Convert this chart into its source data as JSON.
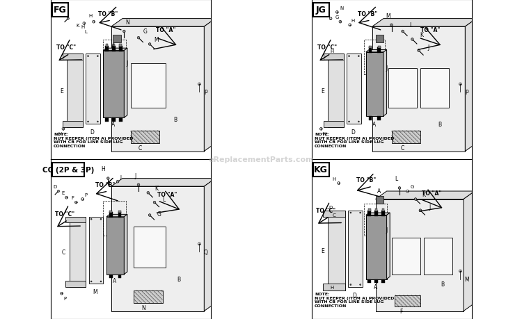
{
  "bg_color": "#ffffff",
  "watermark": "eReplacementParts.com",
  "watermark_color": "#aaaaaa",
  "border_color": "#000000",
  "line_color": "#000000",
  "panel_fill": "#f0f0f0",
  "panel_edge": "#222222",
  "component_fill": "#d8d8d8",
  "dark_fill": "#444444",
  "note_text": "NOTE:\nNUT KEEPER (ITEM A) PROVIDED\nWITH CB FOR LINE SIDE LUG\nCONNECTION",
  "sections": [
    {
      "label": "FG",
      "label_size": 11
    },
    {
      "label": "JG",
      "label_size": 11
    },
    {
      "label": "CC (2P & 3P)",
      "label_size": 9
    },
    {
      "label": "KG",
      "label_size": 11
    }
  ]
}
